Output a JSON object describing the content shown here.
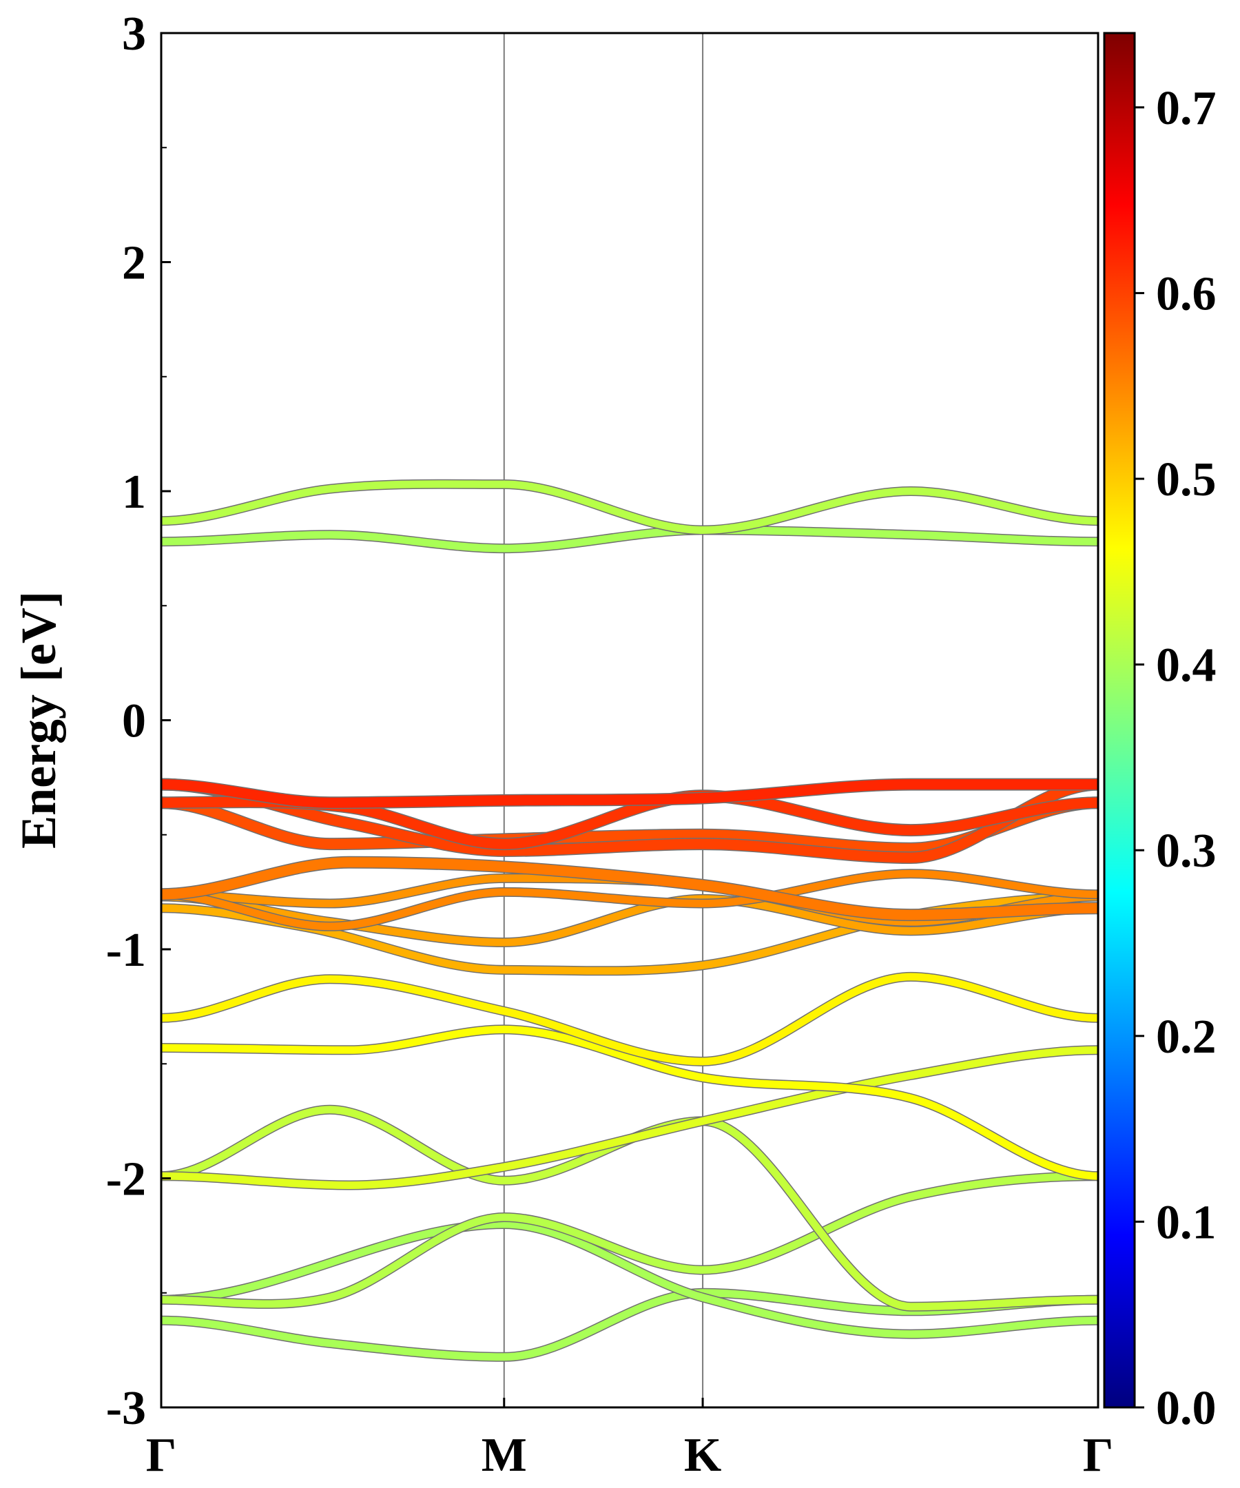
{
  "chart_data": {
    "type": "line",
    "ylabel": "Energy [eV]",
    "xlabel": "",
    "ylim": [
      -3,
      3
    ],
    "y_ticks": [
      "3",
      "2",
      "1",
      "0",
      "-1",
      "-2",
      "-3"
    ],
    "k_points": [
      {
        "label": "Γ",
        "pos": 0.0
      },
      {
        "label": "M",
        "pos": 0.366
      },
      {
        "label": "K",
        "pos": 0.578
      },
      {
        "label": "Γ",
        "pos": 1.0
      }
    ],
    "colorbar": {
      "colormap": "jet",
      "range": [
        0.0,
        0.74
      ],
      "ticks": [
        "0.7",
        "0.6",
        "0.5",
        "0.4",
        "0.3",
        "0.2",
        "0.1",
        "0.0"
      ]
    },
    "bands": [
      {
        "x": [
          0,
          0.18,
          0.366,
          0.578,
          0.8,
          1.0
        ],
        "y": [
          -2.62,
          -2.72,
          -2.78,
          -2.5,
          -2.58,
          -2.53
        ],
        "weight": 0.4
      },
      {
        "x": [
          0,
          0.366,
          0.578,
          0.8,
          1.0
        ],
        "y": [
          -2.53,
          -2.2,
          -2.52,
          -2.68,
          -2.62
        ],
        "weight": 0.4
      },
      {
        "x": [
          0,
          0.18,
          0.366,
          0.578,
          0.8,
          1.0
        ],
        "y": [
          -2.53,
          -2.52,
          -2.17,
          -2.4,
          -2.08,
          -1.99
        ],
        "weight": 0.41
      },
      {
        "x": [
          0,
          0.18,
          0.366,
          0.578,
          0.8,
          1.0
        ],
        "y": [
          -1.99,
          -1.7,
          -2.01,
          -1.75,
          -2.56,
          -2.53
        ],
        "weight": 0.42
      },
      {
        "x": [
          0,
          0.2,
          0.366,
          0.578,
          0.8,
          1.0
        ],
        "y": [
          -1.99,
          -2.03,
          -1.95,
          -1.75,
          -1.55,
          -1.44
        ],
        "weight": 0.44
      },
      {
        "x": [
          0,
          0.2,
          0.366,
          0.578,
          0.8,
          1.0
        ],
        "y": [
          -1.43,
          -1.44,
          -1.35,
          -1.56,
          -1.65,
          -1.99
        ],
        "weight": 0.46
      },
      {
        "x": [
          0,
          0.18,
          0.366,
          0.578,
          0.8,
          1.0
        ],
        "y": [
          -1.3,
          -1.13,
          -1.27,
          -1.49,
          -1.12,
          -1.3
        ],
        "weight": 0.47
      },
      {
        "x": [
          0,
          0.15,
          0.366,
          0.578,
          0.8,
          1.0
        ],
        "y": [
          -0.82,
          -0.9,
          -1.09,
          -1.07,
          -0.85,
          -0.77
        ],
        "weight": 0.52
      },
      {
        "x": [
          0,
          0.18,
          0.366,
          0.578,
          0.8,
          1.0
        ],
        "y": [
          -0.77,
          -0.88,
          -0.97,
          -0.78,
          -0.92,
          -0.82
        ],
        "weight": 0.53
      },
      {
        "x": [
          0,
          0.18,
          0.366,
          0.578,
          0.8,
          1.0
        ],
        "y": [
          -0.76,
          -0.8,
          -0.69,
          -0.72,
          -0.88,
          -0.77
        ],
        "weight": 0.54
      },
      {
        "x": [
          0,
          0.18,
          0.366,
          0.578,
          0.8,
          1.0
        ],
        "y": [
          -0.76,
          -0.9,
          -0.75,
          -0.8,
          -0.67,
          -0.76
        ],
        "weight": 0.55
      },
      {
        "x": [
          0,
          0.2,
          0.366,
          0.578,
          0.8,
          1.0
        ],
        "y": [
          -0.76,
          -0.62,
          -0.64,
          -0.72,
          -0.85,
          -0.82
        ],
        "weight": 0.56
      },
      {
        "x": [
          0,
          0.18,
          0.366,
          0.578,
          0.8,
          1.0
        ],
        "y": [
          -0.36,
          -0.54,
          -0.52,
          -0.5,
          -0.56,
          -0.36
        ],
        "weight": 0.59
      },
      {
        "x": [
          0,
          0.2,
          0.366,
          0.578,
          0.8,
          1.0
        ],
        "y": [
          -0.28,
          -0.45,
          -0.57,
          -0.54,
          -0.6,
          -0.28
        ],
        "weight": 0.6
      },
      {
        "x": [
          0,
          0.2,
          0.366,
          0.578,
          0.8,
          1.0
        ],
        "y": [
          -0.36,
          -0.38,
          -0.54,
          -0.33,
          -0.48,
          -0.36
        ],
        "weight": 0.61
      },
      {
        "x": [
          0,
          0.18,
          0.366,
          0.578,
          0.8,
          1.0
        ],
        "y": [
          -0.28,
          -0.36,
          -0.35,
          -0.34,
          -0.28,
          -0.28
        ],
        "weight": 0.62
      },
      {
        "x": [
          0,
          0.18,
          0.366,
          0.578,
          0.8,
          1.0
        ],
        "y": [
          0.78,
          0.81,
          0.75,
          0.83,
          0.81,
          0.78
        ],
        "weight": 0.4
      },
      {
        "x": [
          0,
          0.18,
          0.366,
          0.578,
          0.8,
          1.0
        ],
        "y": [
          0.87,
          1.01,
          1.03,
          0.83,
          1.0,
          0.87
        ],
        "weight": 0.41
      }
    ]
  }
}
